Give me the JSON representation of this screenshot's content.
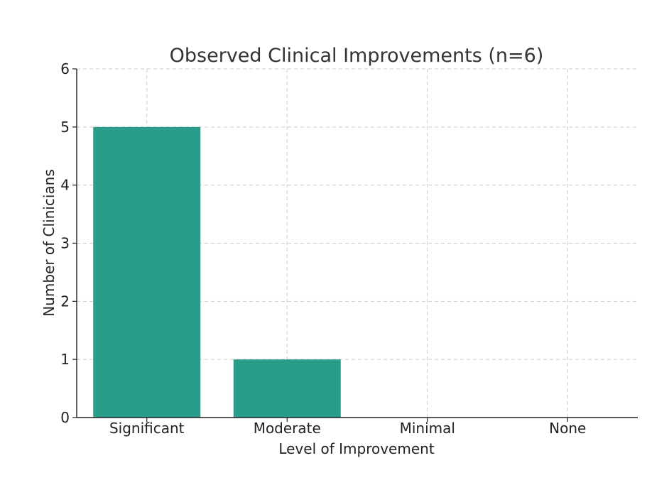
{
  "chart_data": {
    "type": "bar",
    "title": "Observed Clinical Improvements (n=6)",
    "xlabel": "Level of Improvement",
    "ylabel": "Number of Clinicians",
    "categories": [
      "Significant",
      "Moderate",
      "Minimal",
      "None"
    ],
    "values": [
      5,
      1,
      0,
      0
    ],
    "ylim": [
      0,
      6
    ],
    "yticks": [
      "0",
      "1",
      "2",
      "3",
      "4",
      "5",
      "6"
    ],
    "grid": true,
    "bar_color": "#2a9d8a"
  }
}
